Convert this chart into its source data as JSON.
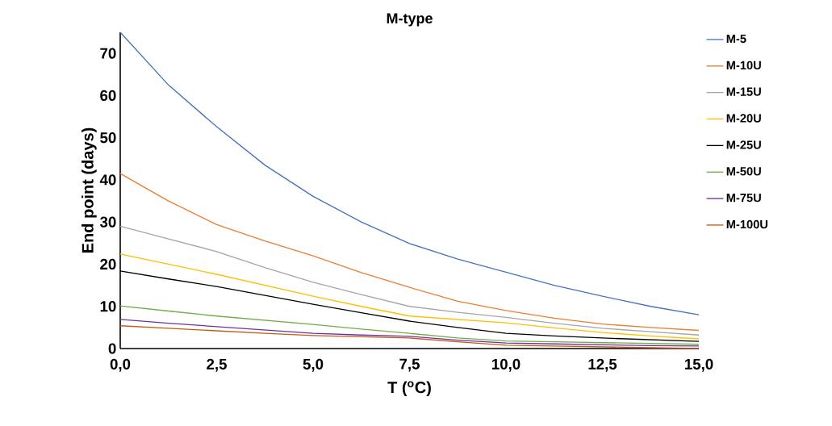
{
  "chart_data": {
    "type": "line",
    "title": "M-type",
    "xlabel": "T ($^{o}$C)",
    "ylabel": "End point (days)",
    "x": [
      0,
      1.25,
      2.5,
      3.75,
      5,
      6.25,
      7.5,
      8.75,
      10,
      11.25,
      12.5,
      13.75,
      15
    ],
    "series": [
      {
        "name": "M-5",
        "color": "#4472c4",
        "values": [
          75,
          62.5,
          52.6,
          43.5,
          36.1,
          30,
          24.9,
          21.2,
          18.1,
          15,
          12.4,
          10,
          8
        ]
      },
      {
        "name": "M-10U",
        "color": "#ed7d31",
        "values": [
          41.5,
          35,
          29.4,
          25.5,
          22,
          18,
          14.5,
          11.2,
          9,
          7.2,
          5.8,
          5,
          4.3
        ]
      },
      {
        "name": "M-15U",
        "color": "#a5a5a5",
        "values": [
          29,
          26,
          23,
          19.2,
          15.7,
          12.8,
          10,
          8.6,
          7.4,
          6,
          4.8,
          4,
          3.2
        ]
      },
      {
        "name": "M-20U",
        "color": "#ffc000",
        "values": [
          22.4,
          20,
          17.6,
          15,
          12.4,
          10,
          7.7,
          6.9,
          6.1,
          4.9,
          3.8,
          3,
          2.3
        ]
      },
      {
        "name": "M-25U",
        "color": "#000000",
        "values": [
          18.4,
          16.5,
          14.7,
          12.6,
          10.5,
          8.5,
          6.5,
          5,
          3.6,
          3,
          2.5,
          2.1,
          1.7
        ]
      },
      {
        "name": "M-50U",
        "color": "#70ad47",
        "values": [
          10.1,
          8.9,
          7.7,
          6.7,
          5.7,
          4.6,
          3.6,
          2.5,
          1.8,
          1.6,
          1.4,
          1.2,
          1
        ]
      },
      {
        "name": "M-75U",
        "color": "#7030a0",
        "values": [
          6.9,
          6,
          5.2,
          4.4,
          3.6,
          3.2,
          2.9,
          2,
          1.3,
          1.1,
          0.9,
          0.7,
          0.6
        ]
      },
      {
        "name": "M-100U",
        "color": "#c55a11",
        "values": [
          5.4,
          4.8,
          4.2,
          3.6,
          3.1,
          2.8,
          2.5,
          1.6,
          0.8,
          0.6,
          0.4,
          0.2,
          0
        ]
      }
    ],
    "xlim": [
      0,
      15
    ],
    "ylim": [
      0,
      75
    ],
    "xticks": [
      {
        "value": 0,
        "label": "0,0"
      },
      {
        "value": 2.5,
        "label": "2,5"
      },
      {
        "value": 5,
        "label": "5,0"
      },
      {
        "value": 7.5,
        "label": "7,5"
      },
      {
        "value": 10,
        "label": "10,0"
      },
      {
        "value": 12.5,
        "label": "12,5"
      },
      {
        "value": 15,
        "label": "15,0"
      }
    ],
    "yticks": [
      0,
      10,
      20,
      30,
      40,
      50,
      60,
      70
    ],
    "legend": "right",
    "marker": "none",
    "line_style": "solid",
    "grid": false
  }
}
